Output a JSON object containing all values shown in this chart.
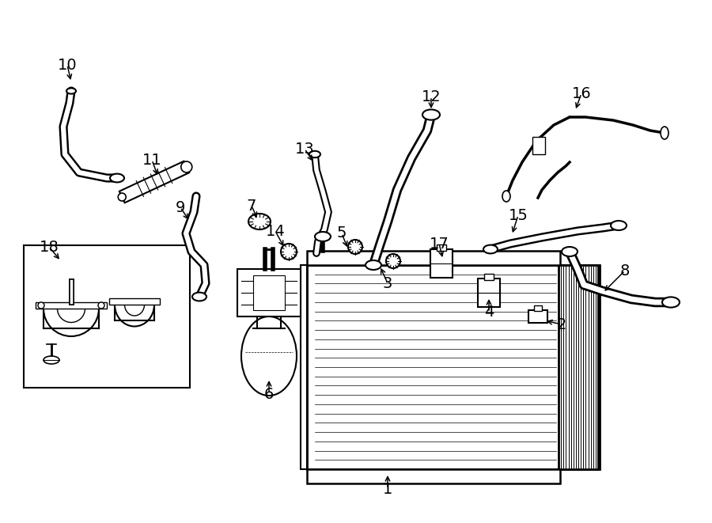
{
  "bg_color": "#ffffff",
  "line_color": "#000000",
  "fig_width": 9.0,
  "fig_height": 6.61,
  "dpi": 100,
  "lw_hose": 6.0,
  "lw_hose_inner": 4.5,
  "lw_thin": 1.2,
  "lw_med": 1.8,
  "lw_thick": 2.5
}
